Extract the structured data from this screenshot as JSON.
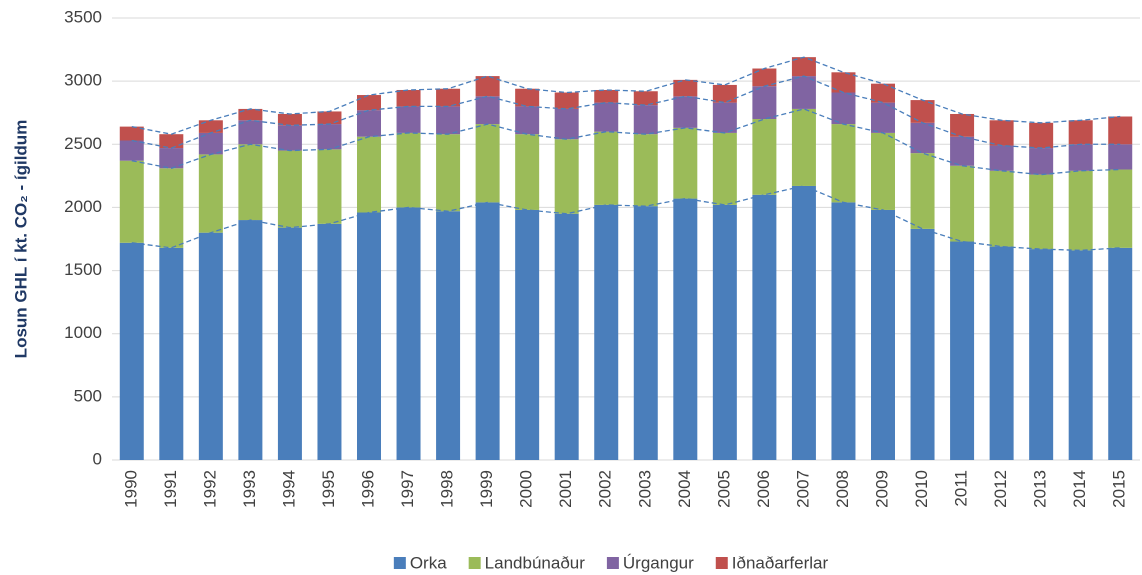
{
  "chart_data": {
    "type": "stacked_bar",
    "y_label": "Losun GHL í kt. CO₂ - ígildum",
    "categories": [
      "1990",
      "1991",
      "1992",
      "1993",
      "1994",
      "1995",
      "1996",
      "1997",
      "1998",
      "1999",
      "2000",
      "2001",
      "2002",
      "2003",
      "2004",
      "2005",
      "2006",
      "2007",
      "2008",
      "2009",
      "2010",
      "2011",
      "2012",
      "2013",
      "2014",
      "2015"
    ],
    "series": [
      {
        "name": "Orka",
        "color": "#4a7ebb",
        "values": [
          1720,
          1680,
          1800,
          1900,
          1840,
          1870,
          1960,
          2000,
          1970,
          2040,
          1980,
          1950,
          2020,
          2010,
          2070,
          2020,
          2100,
          2170,
          2040,
          1980,
          1830,
          1730,
          1690,
          1670,
          1660,
          1680
        ]
      },
      {
        "name": "Landbúnaður",
        "color": "#9bbb59",
        "values": [
          650,
          630,
          620,
          600,
          610,
          590,
          600,
          590,
          610,
          620,
          600,
          590,
          580,
          570,
          560,
          570,
          600,
          610,
          620,
          610,
          600,
          600,
          600,
          590,
          630,
          620
        ]
      },
      {
        "name": "Úrgangur",
        "color": "#8064a2",
        "values": [
          160,
          160,
          170,
          190,
          200,
          200,
          210,
          210,
          220,
          220,
          220,
          240,
          230,
          230,
          250,
          240,
          260,
          260,
          250,
          240,
          240,
          230,
          200,
          210,
          210,
          200
        ]
      },
      {
        "name": "Iðnaðarferlar",
        "color": "#c0504d",
        "values": [
          110,
          110,
          100,
          90,
          90,
          100,
          120,
          130,
          140,
          160,
          140,
          130,
          100,
          110,
          130,
          140,
          140,
          150,
          160,
          150,
          180,
          180,
          200,
          200,
          190,
          220
        ]
      }
    ],
    "ylim": [
      0,
      3500
    ],
    "yticks": [
      0,
      500,
      1000,
      1500,
      2000,
      2500,
      3000,
      3500
    ],
    "grid": true,
    "legend": "bottom"
  }
}
